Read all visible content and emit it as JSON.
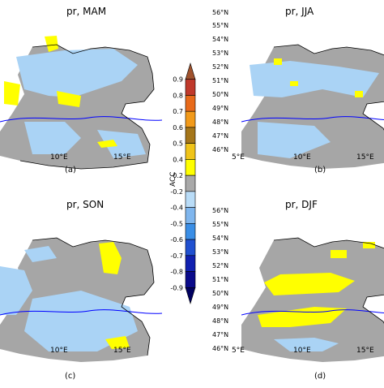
{
  "panels": [
    {
      "title": "pr, MAM",
      "caption": "(a)",
      "lon_labels": [
        "10°E",
        "15°E"
      ]
    },
    {
      "title": "pr, JJA",
      "caption": "(b)",
      "lon_labels": [
        "5°E",
        "10°E",
        "15°E"
      ],
      "lat_labels": [
        "56°N",
        "55°N",
        "54°N",
        "53°N",
        "52°N",
        "51°N",
        "50°N",
        "49°N",
        "48°N",
        "47°N",
        "46°N"
      ]
    },
    {
      "title": "pr, SON",
      "caption": "(c)",
      "lon_labels": [
        "10°E",
        "15°E"
      ]
    },
    {
      "title": "pr, DJF",
      "caption": "(d)",
      "lon_labels": [
        "5°E",
        "10°E",
        "15°E"
      ],
      "lat_labels": [
        "56°N",
        "55°N",
        "54°N",
        "53°N",
        "52°N",
        "51°N",
        "50°N",
        "49°N",
        "48°N",
        "47°N",
        "46°N"
      ]
    }
  ],
  "colorbar": {
    "label": "ACC",
    "ticks": [
      "0.9",
      "0.8",
      "0.7",
      "0.6",
      "0.5",
      "0.4",
      "0.2",
      "-0.2",
      "-0.4",
      "-0.5",
      "-0.6",
      "-0.7",
      "-0.8",
      "-0.9"
    ],
    "colors": [
      "#a0522d",
      "#c0392b",
      "#e86a1a",
      "#f29a1a",
      "#a5761a",
      "#f0c419",
      "#ffff00",
      "#a9a9a9",
      "#b9dcf7",
      "#7fb6ee",
      "#3a8ee6",
      "#2050d0",
      "#1020b0",
      "#0a0a8a",
      "#000060"
    ]
  },
  "colors": {
    "land_gray": "#a6a6a6",
    "light_blue": "#aad3f5",
    "yellow": "#ffff00",
    "river": "#0000ff",
    "border": "#000000"
  }
}
